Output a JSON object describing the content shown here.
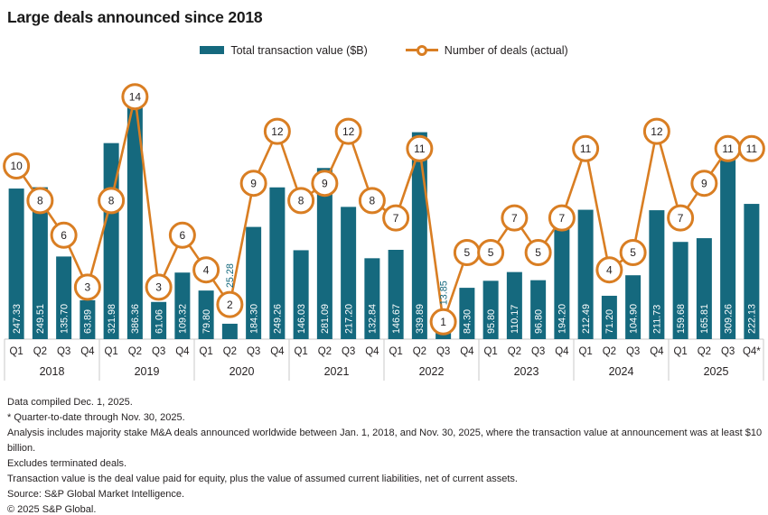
{
  "title": "Large deals announced since 2018",
  "legend": {
    "bar_label": "Total transaction value ($B)",
    "line_label": "Number of deals (actual)"
  },
  "colors": {
    "bar": "#15697E",
    "line": "#D97E23",
    "marker_fill": "#FFFFFF",
    "grid": "#C8C8C8",
    "text": "#231F20",
    "bar_label_inside": "#FFFFFF"
  },
  "chart_data": {
    "type": "bar",
    "subtype": "bar-line-combo",
    "title": "Large deals announced since 2018",
    "legend_position": "top-center",
    "grid": "off",
    "value_axis_max": 400,
    "deals_axis_max": 14,
    "bar_series_name": "Total transaction value ($B)",
    "line_series_name": "Number of deals (actual)",
    "groups": [
      {
        "year": "2018",
        "quarters": [
          "Q1",
          "Q2",
          "Q3",
          "Q4"
        ],
        "values": [
          "247.33",
          "249.51",
          "135.70",
          "63.89"
        ],
        "deals": [
          10,
          8,
          6,
          3
        ]
      },
      {
        "year": "2019",
        "quarters": [
          "Q1",
          "Q2",
          "Q3",
          "Q4"
        ],
        "values": [
          "321.98",
          "386.36",
          "61.06",
          "109.32"
        ],
        "deals": [
          8,
          14,
          3,
          6
        ]
      },
      {
        "year": "2020",
        "quarters": [
          "Q1",
          "Q2",
          "Q3",
          "Q4"
        ],
        "values": [
          "79.80",
          "25.28",
          "184.30",
          "249.26"
        ],
        "deals": [
          4,
          2,
          9,
          12
        ]
      },
      {
        "year": "2021",
        "quarters": [
          "Q1",
          "Q2",
          "Q3",
          "Q4"
        ],
        "values": [
          "146.03",
          "281.09",
          "217.20",
          "132.84"
        ],
        "deals": [
          8,
          9,
          12,
          8
        ]
      },
      {
        "year": "2022",
        "quarters": [
          "Q1",
          "Q2",
          "Q3",
          "Q4"
        ],
        "values": [
          "146.67",
          "339.89",
          "13.85",
          "84.30"
        ],
        "deals": [
          7,
          11,
          1,
          5
        ]
      },
      {
        "year": "2023",
        "quarters": [
          "Q1",
          "Q2",
          "Q3",
          "Q4"
        ],
        "values": [
          "95.80",
          "110.17",
          "96.80",
          "194.20"
        ],
        "deals": [
          5,
          7,
          5,
          7
        ]
      },
      {
        "year": "2024",
        "quarters": [
          "Q1",
          "Q2",
          "Q3",
          "Q4"
        ],
        "values": [
          "212.49",
          "71.20",
          "104.90",
          "211.73"
        ],
        "deals": [
          11,
          4,
          5,
          12
        ]
      },
      {
        "year": "2025",
        "quarters": [
          "Q1",
          "Q2",
          "Q3",
          "Q4*"
        ],
        "values": [
          "159.68",
          "165.81",
          "309.26",
          "222.13"
        ],
        "deals": [
          7,
          9,
          11,
          11
        ]
      }
    ]
  },
  "footnotes": [
    "Data compiled Dec. 1, 2025.",
    "* Quarter-to-date through Nov. 30, 2025.",
    "Analysis includes majority stake M&A deals announced worldwide between Jan. 1, 2018, and Nov. 30, 2025, where the transaction value at announcement was at least $10 billion.",
    "Excludes terminated deals.",
    "Transaction value is the deal value paid for equity, plus the value of assumed current liabilities, net of current assets.",
    "Source: S&P Global Market Intelligence.",
    "© 2025 S&P Global."
  ]
}
